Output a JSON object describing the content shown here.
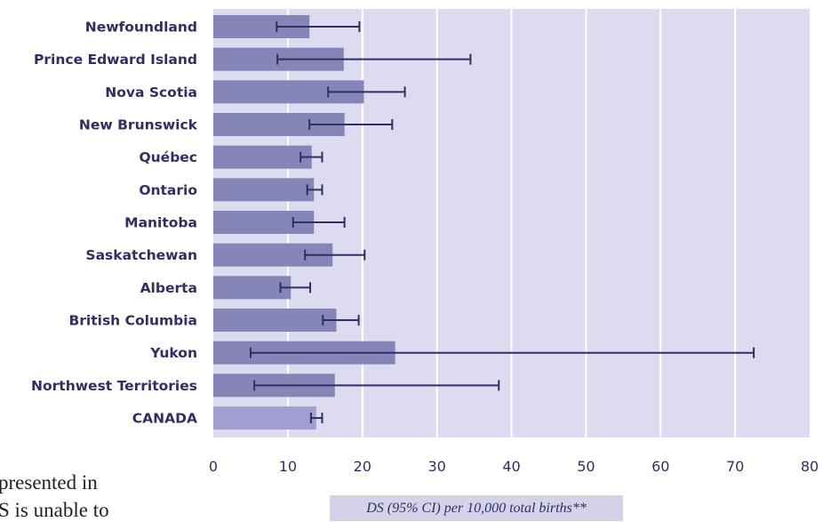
{
  "background_text": {
    "fragment_1": "presented in",
    "fragment_2": "S is unable to"
  },
  "chart_data": {
    "type": "bar",
    "orientation": "horizontal",
    "categories": [
      "Newfoundland",
      "Prince Edward Island",
      "Nova Scotia",
      "New Brunswick",
      "Québec",
      "Ontario",
      "Manitoba",
      "Saskatchewan",
      "Alberta",
      "British Columbia",
      "Yukon",
      "Northwest Territories",
      "CANADA"
    ],
    "values": [
      12.9,
      17.5,
      20.2,
      17.6,
      13.2,
      13.5,
      13.5,
      16.0,
      10.4,
      16.5,
      24.4,
      16.3,
      13.8
    ],
    "ci_lower": [
      8.5,
      8.6,
      15.4,
      12.9,
      11.7,
      12.6,
      10.7,
      12.3,
      9.0,
      14.7,
      5.0,
      5.5,
      13.1
    ],
    "ci_upper": [
      19.6,
      34.5,
      25.7,
      24.0,
      14.6,
      14.6,
      17.6,
      20.3,
      13.0,
      19.5,
      72.5,
      38.3,
      14.6
    ],
    "xlim": [
      0,
      80
    ],
    "xticks": [
      "0",
      "10",
      "20",
      "30",
      "40",
      "50",
      "60",
      "70",
      "80"
    ],
    "xlabel": "DS (95% CI) per 10,000 total births**",
    "grid": "vertical",
    "colors": {
      "plot_background": "#dcdbf0",
      "bar": "#8685b8",
      "total_bar": "#a19fd2",
      "error_bar": "#2f2f66",
      "gridline": "#ffffff",
      "text": "#2f2f66"
    }
  }
}
